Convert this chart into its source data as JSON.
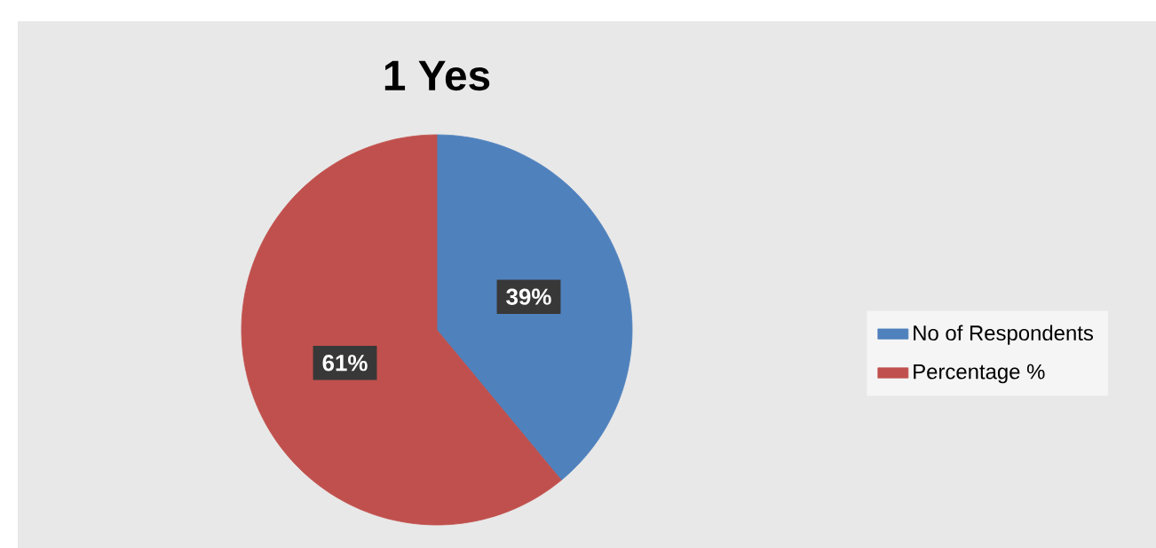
{
  "chart_data": {
    "type": "pie",
    "title": "1 Yes",
    "categories": [
      "No of Respondents",
      "Percentage %"
    ],
    "values": [
      39,
      61
    ],
    "colors": [
      "#4f81bd",
      "#c0504d"
    ],
    "value_labels": [
      "39%",
      "61%"
    ],
    "legend": "right"
  }
}
